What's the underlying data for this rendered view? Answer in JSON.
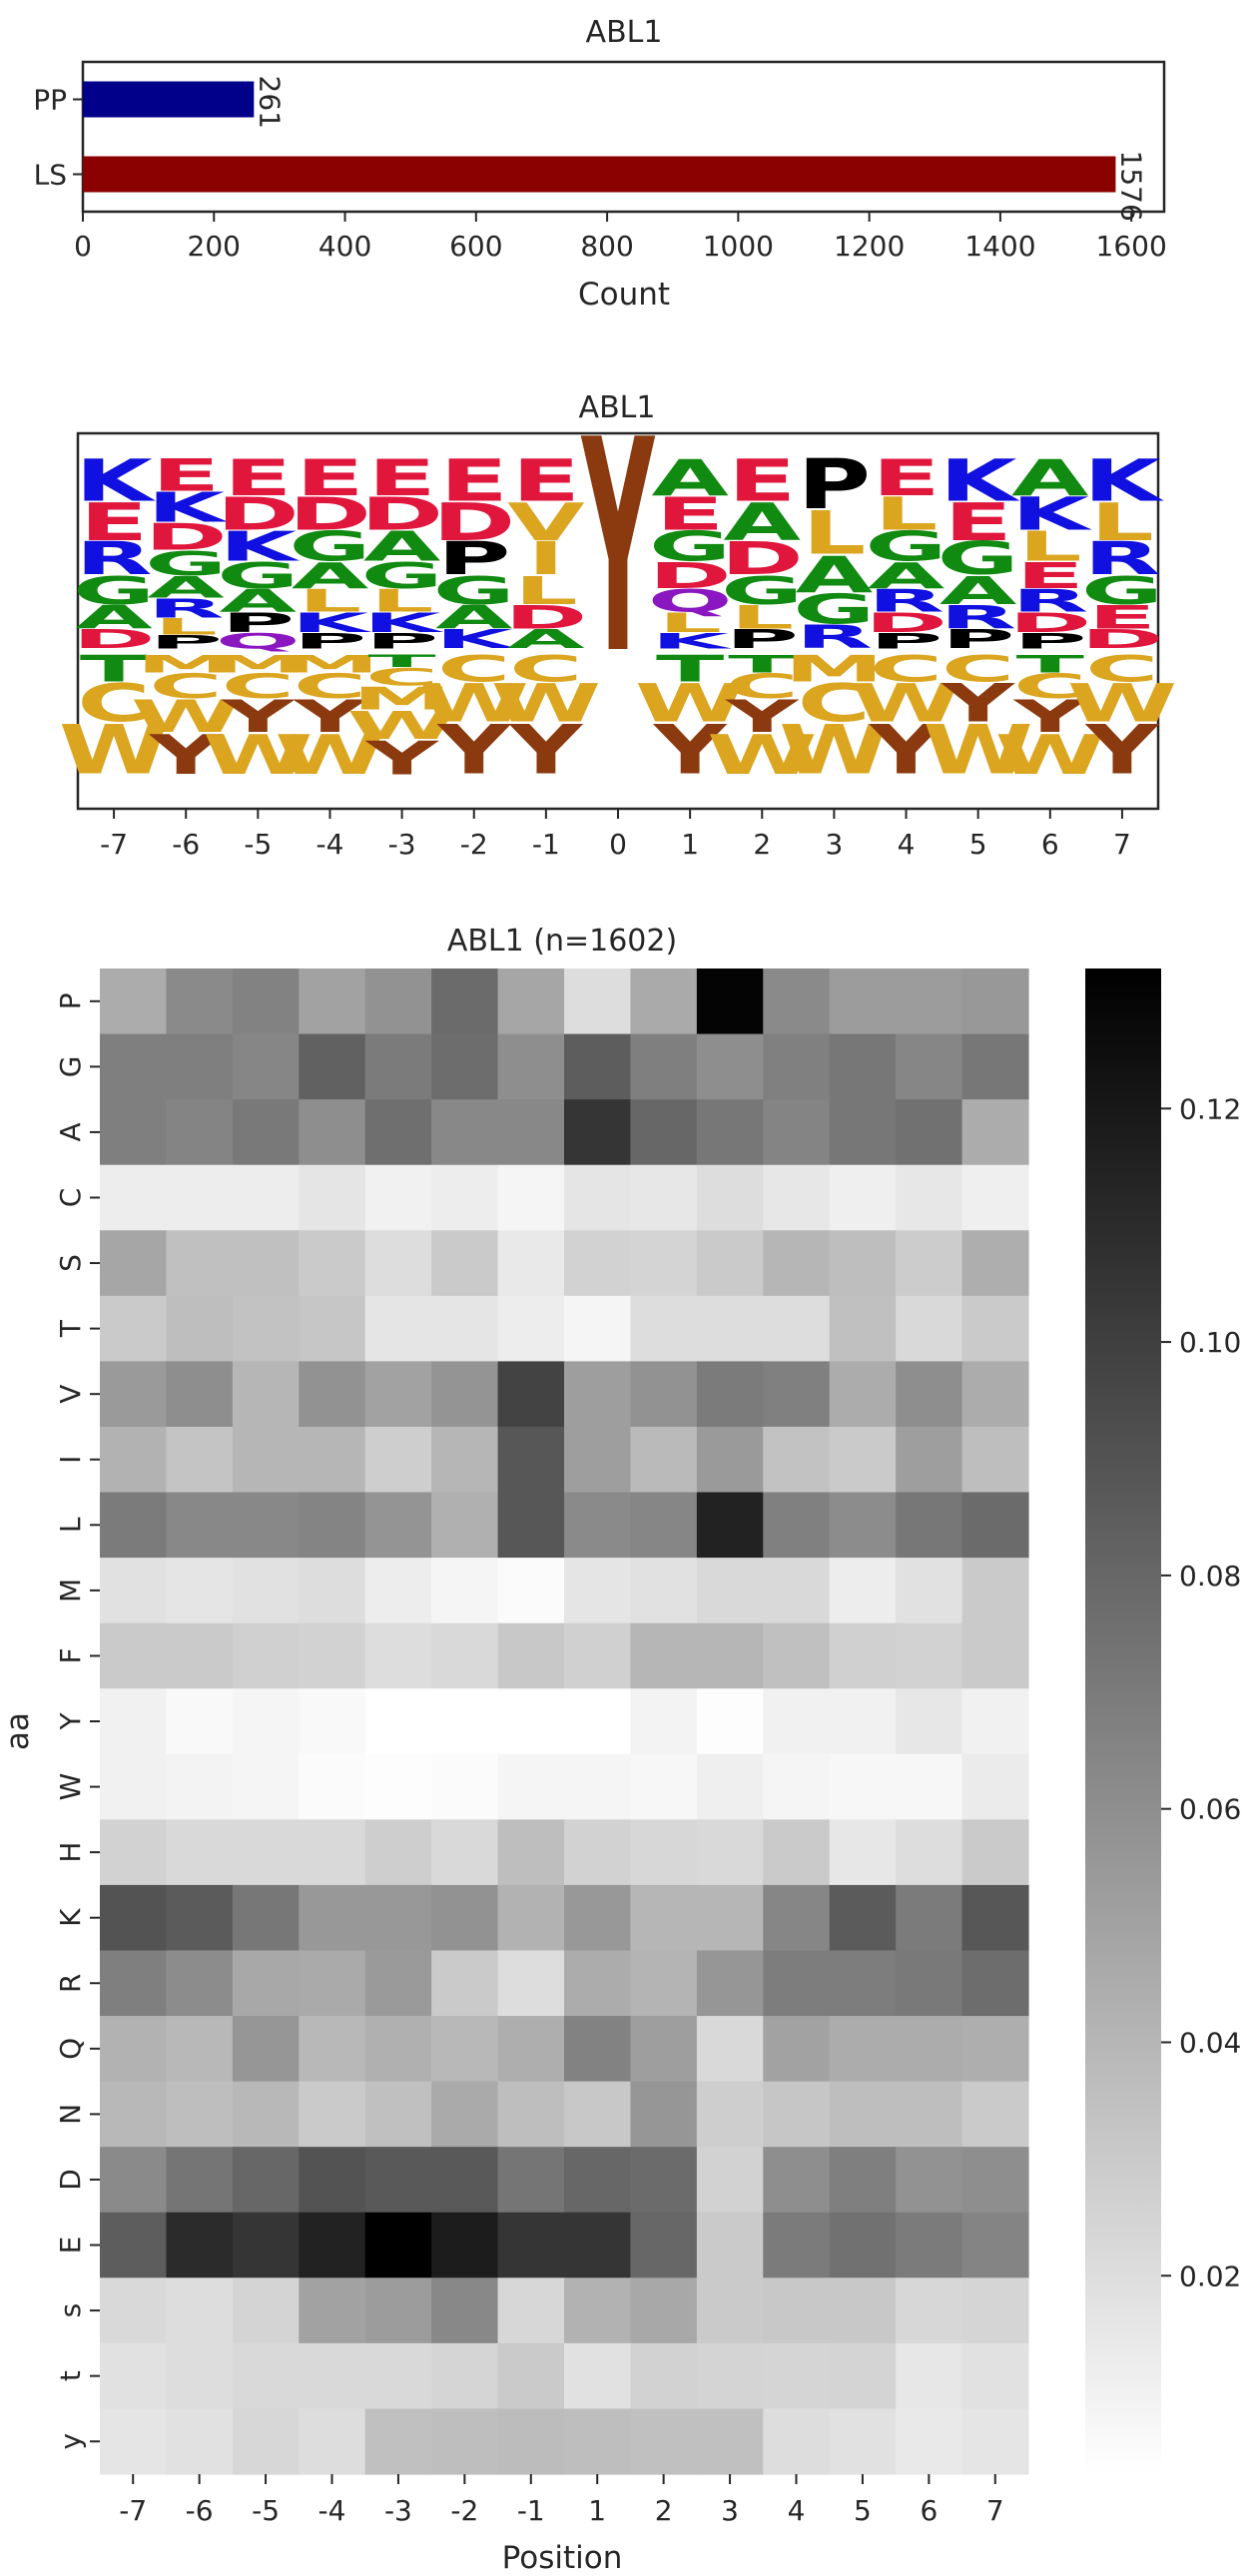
{
  "chart_data": [
    {
      "type": "bar",
      "orientation": "horizontal",
      "title": "ABL1",
      "xlabel": "Count",
      "ylabel": "",
      "xlim": [
        0,
        1650
      ],
      "xticks": [
        0,
        200,
        400,
        600,
        800,
        1000,
        1200,
        1400,
        1600
      ],
      "categories": [
        "PP",
        "LS"
      ],
      "values": [
        261,
        1576
      ],
      "colors": [
        "#00008b",
        "#8b0000"
      ],
      "data_labels": [
        "261",
        "1576"
      ]
    },
    {
      "type": "sequence_logo",
      "title": "ABL1",
      "positions": [
        "-7",
        "-6",
        "-5",
        "-4",
        "-3",
        "-2",
        "-1",
        "0",
        "1",
        "2",
        "3",
        "4",
        "5",
        "6",
        "7"
      ],
      "letter_colors": {
        "acidic": "#e0163c",
        "basic": "#1010e0",
        "hydrophobic": "#dba520",
        "small": "#118a11",
        "P": "#000000",
        "polar": "#8b17c0",
        "Y": "#8b3a10"
      },
      "upper_letters": [
        [
          "K",
          "E",
          "R",
          "G",
          "A",
          "D"
        ],
        [
          "E",
          "K",
          "D",
          "G",
          "A",
          "R",
          "L",
          "P"
        ],
        [
          "E",
          "D",
          "K",
          "G",
          "A",
          "P",
          "Q"
        ],
        [
          "E",
          "D",
          "G",
          "A",
          "L",
          "K",
          "P"
        ],
        [
          "E",
          "D",
          "A",
          "G",
          "L",
          "K",
          "P"
        ],
        [
          "E",
          "D",
          "P",
          "G",
          "A",
          "K"
        ],
        [
          "E",
          "V",
          "I",
          "L",
          "D",
          "A"
        ],
        [
          "Y"
        ],
        [
          "A",
          "E",
          "G",
          "D",
          "Q",
          "L",
          "K"
        ],
        [
          "E",
          "A",
          "D",
          "G",
          "L",
          "P"
        ],
        [
          "P",
          "L",
          "A",
          "G",
          "R"
        ],
        [
          "E",
          "L",
          "G",
          "A",
          "R",
          "D",
          "P"
        ],
        [
          "K",
          "E",
          "G",
          "A",
          "R",
          "P"
        ],
        [
          "A",
          "K",
          "L",
          "E",
          "R",
          "D",
          "P"
        ],
        [
          "K",
          "L",
          "R",
          "G",
          "E",
          "D"
        ]
      ],
      "lower_letters": [
        [
          "T",
          "C",
          "W"
        ],
        [
          "M",
          "C",
          "W",
          "Y"
        ],
        [
          "M",
          "C",
          "Y",
          "W"
        ],
        [
          "M",
          "C",
          "Y",
          "W"
        ],
        [
          "T",
          "C",
          "M",
          "W",
          "Y"
        ],
        [
          "C",
          "W",
          "Y"
        ],
        [
          "C",
          "W",
          "Y"
        ],
        [],
        [
          "T",
          "W",
          "Y"
        ],
        [
          "T",
          "C",
          "Y",
          "W"
        ],
        [
          "M",
          "C",
          "W"
        ],
        [
          "C",
          "W",
          "Y"
        ],
        [
          "C",
          "Y",
          "W"
        ],
        [
          "T",
          "C",
          "Y",
          "W"
        ],
        [
          "C",
          "W",
          "Y"
        ]
      ]
    },
    {
      "type": "heatmap",
      "title": "ABL1 (n=1602)",
      "xlabel": "Position",
      "ylabel": "aa",
      "x": [
        "-7",
        "-6",
        "-5",
        "-4",
        "-3",
        "-2",
        "-1",
        "1",
        "2",
        "3",
        "4",
        "5",
        "6",
        "7"
      ],
      "y": [
        "P",
        "G",
        "A",
        "C",
        "S",
        "T",
        "V",
        "I",
        "L",
        "M",
        "F",
        "Y",
        "W",
        "H",
        "K",
        "R",
        "Q",
        "N",
        "D",
        "E",
        "s",
        "t",
        "y"
      ],
      "colormap": "Greys",
      "vmin": 0.003,
      "vmax": 0.132,
      "colorbar_ticks": [
        0.02,
        0.04,
        0.06,
        0.08,
        0.1,
        0.12
      ],
      "colorbar_labels": [
        "0.02",
        "0.04",
        "0.06",
        "0.08",
        "0.10",
        "0.12"
      ],
      "values": [
        [
          0.045,
          0.062,
          0.066,
          0.05,
          0.058,
          0.078,
          0.048,
          0.02,
          0.046,
          0.13,
          0.062,
          0.053,
          0.053,
          0.055
        ],
        [
          0.068,
          0.068,
          0.064,
          0.083,
          0.07,
          0.077,
          0.06,
          0.085,
          0.068,
          0.06,
          0.067,
          0.072,
          0.064,
          0.072
        ],
        [
          0.068,
          0.065,
          0.071,
          0.06,
          0.076,
          0.063,
          0.063,
          0.105,
          0.08,
          0.072,
          0.065,
          0.072,
          0.075,
          0.045
        ],
        [
          0.012,
          0.012,
          0.012,
          0.016,
          0.01,
          0.012,
          0.008,
          0.016,
          0.015,
          0.02,
          0.015,
          0.011,
          0.015,
          0.011
        ],
        [
          0.048,
          0.035,
          0.035,
          0.03,
          0.02,
          0.03,
          0.014,
          0.026,
          0.025,
          0.03,
          0.04,
          0.036,
          0.029,
          0.044
        ],
        [
          0.03,
          0.036,
          0.034,
          0.032,
          0.016,
          0.016,
          0.012,
          0.008,
          0.02,
          0.02,
          0.02,
          0.035,
          0.022,
          0.03
        ],
        [
          0.054,
          0.06,
          0.04,
          0.058,
          0.05,
          0.057,
          0.098,
          0.052,
          0.058,
          0.07,
          0.067,
          0.045,
          0.06,
          0.045
        ],
        [
          0.042,
          0.033,
          0.04,
          0.04,
          0.028,
          0.04,
          0.088,
          0.052,
          0.038,
          0.054,
          0.034,
          0.03,
          0.052,
          0.036
        ],
        [
          0.07,
          0.063,
          0.063,
          0.065,
          0.057,
          0.043,
          0.088,
          0.062,
          0.064,
          0.115,
          0.067,
          0.061,
          0.072,
          0.078
        ],
        [
          0.018,
          0.016,
          0.018,
          0.02,
          0.012,
          0.008,
          0.005,
          0.016,
          0.018,
          0.022,
          0.022,
          0.012,
          0.018,
          0.03
        ],
        [
          0.03,
          0.03,
          0.027,
          0.026,
          0.02,
          0.022,
          0.031,
          0.027,
          0.04,
          0.04,
          0.035,
          0.027,
          0.026,
          0.03
        ],
        [
          0.01,
          0.006,
          0.008,
          0.006,
          0.002,
          0.002,
          0.003,
          0.002,
          0.009,
          0.004,
          0.01,
          0.01,
          0.015,
          0.01
        ],
        [
          0.01,
          0.009,
          0.008,
          0.005,
          0.004,
          0.005,
          0.008,
          0.008,
          0.007,
          0.011,
          0.008,
          0.007,
          0.007,
          0.013
        ],
        [
          0.026,
          0.022,
          0.022,
          0.022,
          0.028,
          0.022,
          0.036,
          0.026,
          0.023,
          0.022,
          0.03,
          0.015,
          0.02,
          0.03
        ],
        [
          0.09,
          0.086,
          0.072,
          0.055,
          0.055,
          0.058,
          0.042,
          0.055,
          0.04,
          0.04,
          0.064,
          0.086,
          0.07,
          0.088
        ],
        [
          0.068,
          0.061,
          0.047,
          0.046,
          0.054,
          0.03,
          0.02,
          0.045,
          0.041,
          0.056,
          0.069,
          0.069,
          0.071,
          0.077
        ],
        [
          0.042,
          0.039,
          0.056,
          0.039,
          0.043,
          0.039,
          0.044,
          0.066,
          0.052,
          0.022,
          0.05,
          0.045,
          0.045,
          0.044
        ],
        [
          0.039,
          0.036,
          0.039,
          0.03,
          0.035,
          0.046,
          0.036,
          0.031,
          0.056,
          0.028,
          0.032,
          0.036,
          0.036,
          0.03
        ],
        [
          0.062,
          0.073,
          0.08,
          0.09,
          0.087,
          0.087,
          0.073,
          0.08,
          0.078,
          0.026,
          0.06,
          0.068,
          0.058,
          0.06
        ],
        [
          0.085,
          0.11,
          0.105,
          0.115,
          0.132,
          0.118,
          0.105,
          0.105,
          0.08,
          0.03,
          0.07,
          0.075,
          0.07,
          0.065
        ],
        [
          0.022,
          0.02,
          0.025,
          0.05,
          0.053,
          0.063,
          0.023,
          0.042,
          0.047,
          0.03,
          0.031,
          0.031,
          0.023,
          0.024
        ],
        [
          0.018,
          0.02,
          0.022,
          0.022,
          0.022,
          0.024,
          0.03,
          0.018,
          0.026,
          0.025,
          0.024,
          0.025,
          0.015,
          0.018
        ],
        [
          0.016,
          0.018,
          0.023,
          0.02,
          0.035,
          0.036,
          0.037,
          0.036,
          0.035,
          0.035,
          0.02,
          0.018,
          0.014,
          0.016
        ]
      ]
    }
  ]
}
